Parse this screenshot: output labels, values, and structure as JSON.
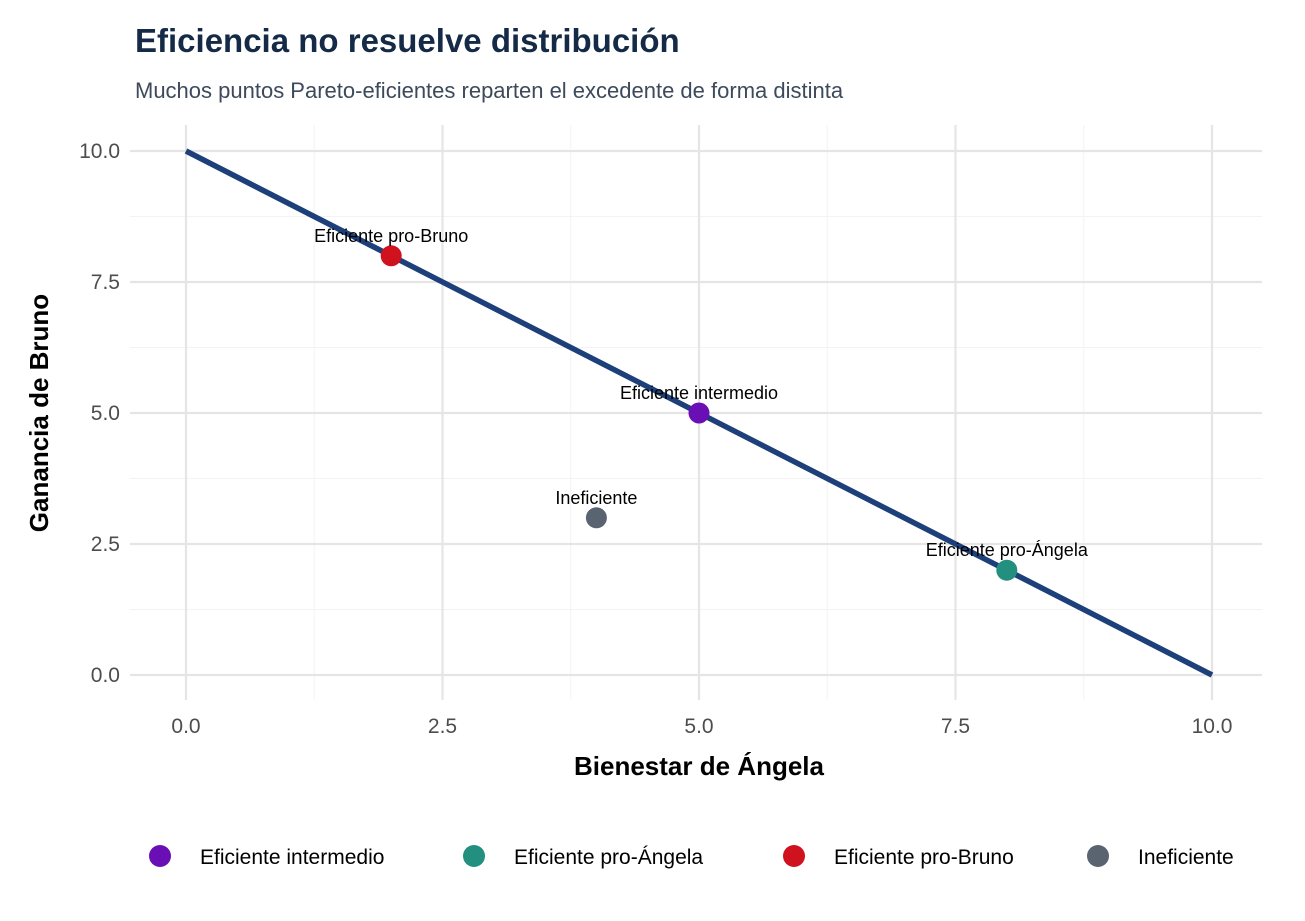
{
  "chart_data": {
    "type": "scatter",
    "title": "Eficiencia no resuelve distribución",
    "subtitle": "Muchos puntos Pareto-eficientes reparten el excedente de forma distinta",
    "xlabel": "Bienestar de Ángela",
    "ylabel": "Ganancia de Bruno",
    "xlim": [
      0,
      10
    ],
    "ylim": [
      0,
      10
    ],
    "xticks": [
      "0.0",
      "2.5",
      "5.0",
      "7.5",
      "10.0"
    ],
    "yticks": [
      "0.0",
      "2.5",
      "5.0",
      "7.5",
      "10.0"
    ],
    "grid": true,
    "frontier": {
      "x": [
        0,
        10
      ],
      "y": [
        10,
        0
      ],
      "color": "#1d3f7a"
    },
    "points": [
      {
        "label": "Eficiente pro-Bruno",
        "x": 2,
        "y": 8,
        "category": "Eficiente pro-Bruno"
      },
      {
        "label": "Eficiente intermedio",
        "x": 5,
        "y": 5,
        "category": "Eficiente intermedio"
      },
      {
        "label": "Ineficiente",
        "x": 4,
        "y": 3,
        "category": "Ineficiente"
      },
      {
        "label": "Eficiente pro-Ángela",
        "x": 8,
        "y": 2,
        "category": "Eficiente pro-Ángela"
      }
    ],
    "legend": {
      "placement": "bottom",
      "entries": [
        {
          "name": "Eficiente intermedio",
          "color": "#6a0fb5"
        },
        {
          "name": "Eficiente pro-Ángela",
          "color": "#23907f"
        },
        {
          "name": "Eficiente pro-Bruno",
          "color": "#d0121f"
        },
        {
          "name": "Ineficiente",
          "color": "#5a6370"
        }
      ]
    }
  }
}
